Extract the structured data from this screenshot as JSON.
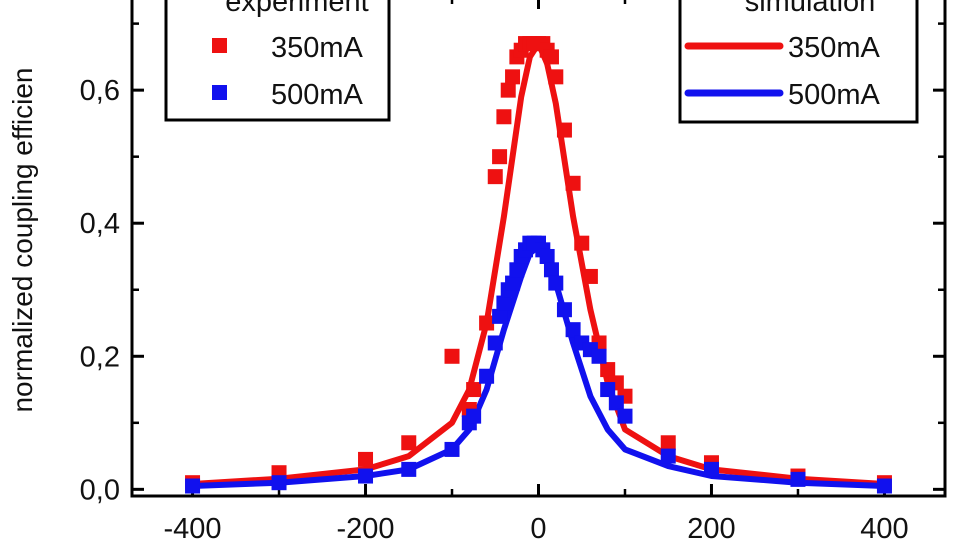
{
  "chart_data": {
    "type": "scatter",
    "title": "",
    "xlabel": "",
    "ylabel": "normalized coupling efficien",
    "xlim": [
      -470,
      470
    ],
    "ylim": [
      -0.01,
      0.74
    ],
    "x_ticks": [
      -400,
      -200,
      0,
      200,
      400
    ],
    "x_tick_labels": [
      "-400",
      "-200",
      "0",
      "200",
      "400"
    ],
    "y_ticks": [
      0.0,
      0.2,
      0.4,
      0.6
    ],
    "y_tick_labels": [
      "0,0",
      "0,2",
      "0,4",
      "0,6"
    ],
    "legends": {
      "experiment": {
        "title": "experiment",
        "placement": "top-left",
        "entries": [
          {
            "label": "350mA",
            "color": "#ee1111",
            "marker": "square"
          },
          {
            "label": "500mA",
            "color": "#1111ee",
            "marker": "square"
          }
        ]
      },
      "simulation": {
        "title": "simulation",
        "placement": "top-right",
        "entries": [
          {
            "label": "350mA",
            "color": "#ee1111",
            "marker": "line"
          },
          {
            "label": "500mA",
            "color": "#1111ee",
            "marker": "line"
          }
        ]
      }
    },
    "series": [
      {
        "name": "experiment 350mA",
        "kind": "points",
        "color": "#ee1111",
        "x": [
          -400,
          -300,
          -200,
          -150,
          -100,
          -80,
          -75,
          -60,
          -50,
          -45,
          -40,
          -35,
          -30,
          -25,
          -20,
          -15,
          -10,
          -5,
          0,
          5,
          10,
          15,
          20,
          30,
          40,
          50,
          60,
          70,
          80,
          90,
          100,
          150,
          200,
          300,
          400
        ],
        "y": [
          0.01,
          0.025,
          0.045,
          0.07,
          0.2,
          0.12,
          0.15,
          0.25,
          0.47,
          0.5,
          0.56,
          0.6,
          0.62,
          0.65,
          0.66,
          0.67,
          0.67,
          0.67,
          0.67,
          0.67,
          0.66,
          0.65,
          0.62,
          0.54,
          0.46,
          0.37,
          0.32,
          0.22,
          0.18,
          0.16,
          0.14,
          0.07,
          0.04,
          0.02,
          0.01
        ]
      },
      {
        "name": "experiment 500mA",
        "kind": "points",
        "color": "#1111ee",
        "x": [
          -400,
          -300,
          -200,
          -150,
          -100,
          -80,
          -75,
          -60,
          -50,
          -45,
          -40,
          -35,
          -30,
          -25,
          -20,
          -15,
          -10,
          -5,
          0,
          5,
          10,
          15,
          20,
          30,
          40,
          50,
          60,
          70,
          80,
          90,
          100,
          150,
          200,
          300,
          400
        ],
        "y": [
          0.005,
          0.01,
          0.02,
          0.03,
          0.06,
          0.1,
          0.11,
          0.17,
          0.22,
          0.26,
          0.28,
          0.3,
          0.31,
          0.33,
          0.35,
          0.36,
          0.37,
          0.37,
          0.37,
          0.36,
          0.35,
          0.33,
          0.31,
          0.27,
          0.24,
          0.22,
          0.21,
          0.2,
          0.15,
          0.13,
          0.11,
          0.05,
          0.03,
          0.015,
          0.005
        ]
      },
      {
        "name": "simulation 350mA",
        "kind": "line",
        "color": "#ee1111",
        "x": [
          -400,
          -300,
          -200,
          -150,
          -100,
          -80,
          -60,
          -40,
          -20,
          -10,
          0,
          10,
          20,
          40,
          60,
          80,
          100,
          150,
          200,
          300,
          400
        ],
        "y": [
          0.008,
          0.016,
          0.03,
          0.05,
          0.1,
          0.15,
          0.25,
          0.41,
          0.59,
          0.65,
          0.67,
          0.64,
          0.58,
          0.41,
          0.27,
          0.16,
          0.09,
          0.05,
          0.03,
          0.016,
          0.008
        ]
      },
      {
        "name": "simulation 500mA",
        "kind": "line",
        "color": "#1111ee",
        "x": [
          -400,
          -300,
          -200,
          -150,
          -100,
          -80,
          -60,
          -40,
          -20,
          -10,
          0,
          10,
          20,
          40,
          60,
          80,
          100,
          150,
          200,
          300,
          400
        ],
        "y": [
          0.005,
          0.01,
          0.02,
          0.03,
          0.06,
          0.09,
          0.15,
          0.24,
          0.32,
          0.355,
          0.365,
          0.35,
          0.31,
          0.22,
          0.14,
          0.09,
          0.06,
          0.035,
          0.02,
          0.01,
          0.005
        ]
      }
    ]
  }
}
